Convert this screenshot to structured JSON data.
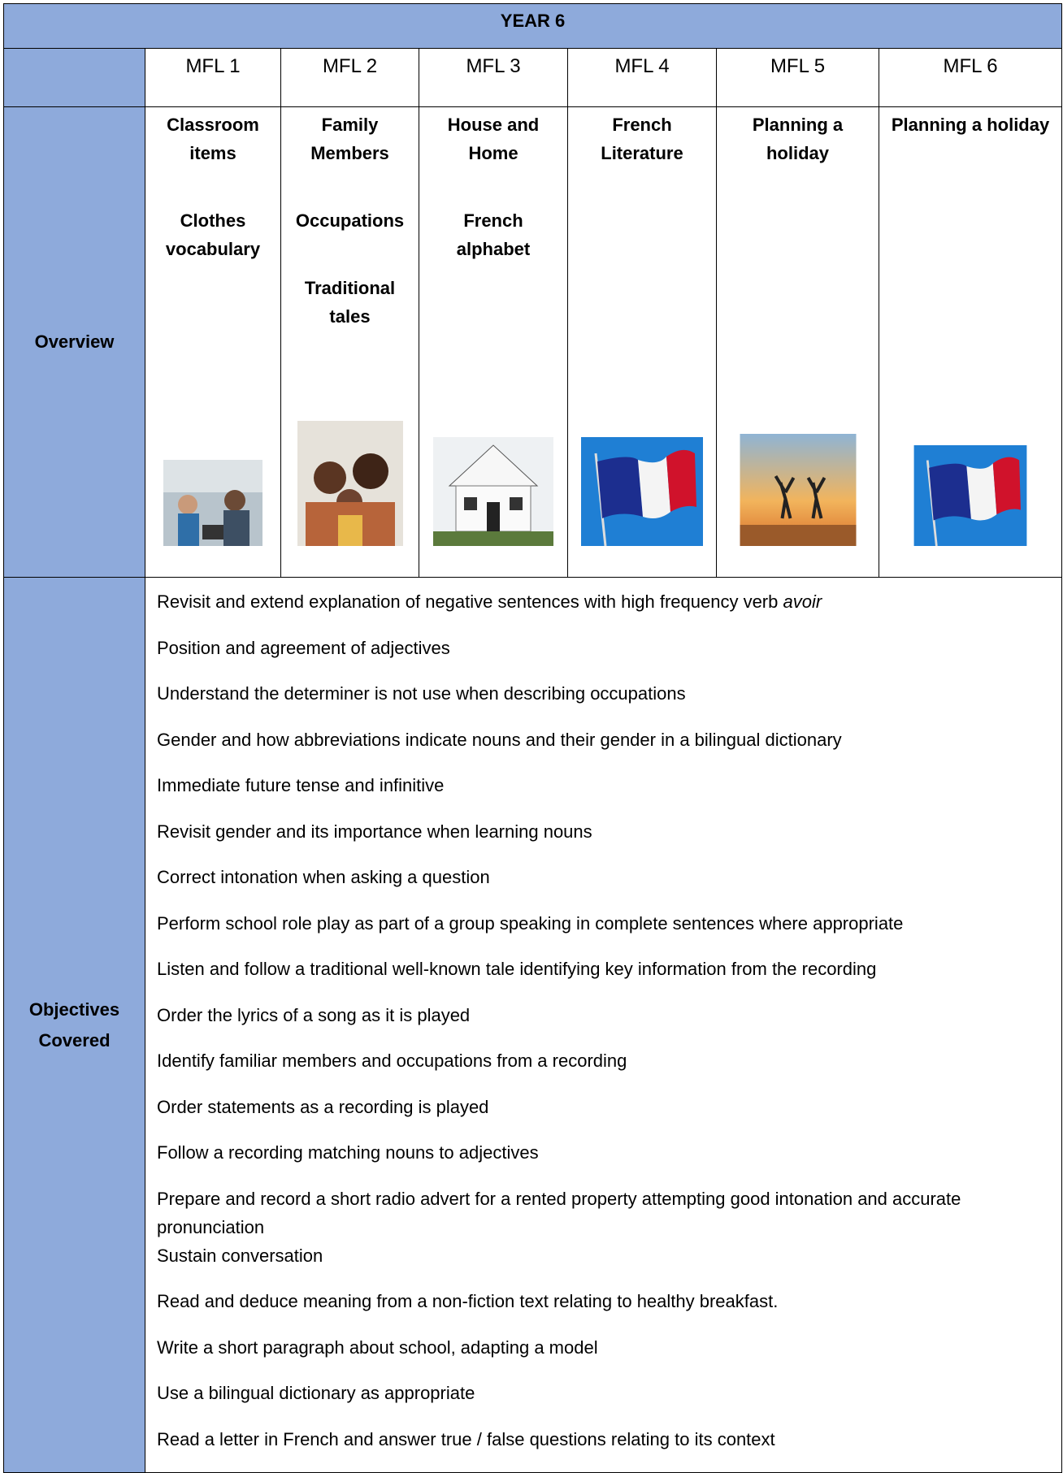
{
  "table": {
    "title": "YEAR 6",
    "headers": [
      "MFL  1",
      "MFL 2",
      "MFL 3",
      "MFL 4",
      "MFL 5",
      "MFL 6"
    ],
    "overview_label": "Overview",
    "overview": [
      [
        "Classroom items",
        "Clothes vocabulary"
      ],
      [
        "Family Members",
        "Occupations",
        "Traditional tales"
      ],
      [
        "House and Home",
        "French alphabet"
      ],
      [
        "French Literature"
      ],
      [
        "Planning a holiday"
      ],
      [
        "Planning a holiday"
      ]
    ],
    "objectives_label": "Objectives Covered",
    "objectives": [
      {
        "text": "Revisit and extend explanation of negative sentences with high frequency verb ",
        "italic": "avoir"
      },
      {
        "text": "Position and agreement of adjectives"
      },
      {
        "text": "Understand the determiner is not use when describing occupations"
      },
      {
        "text": "Gender and how abbreviations indicate nouns and their gender in a bilingual dictionary"
      },
      {
        "text": "Immediate future tense and infinitive"
      },
      {
        "text": "Revisit gender and its importance when learning nouns"
      },
      {
        "text": "Correct intonation when asking a question"
      },
      {
        "text": "Perform school role play as part of a group speaking in complete sentences where appropriate"
      },
      {
        "text": "Listen and follow a traditional well-known tale identifying key information from the recording"
      },
      {
        "text": "Order the lyrics of a song as it is played"
      },
      {
        "text": "Identify familiar members and occupations from a recording"
      },
      {
        "text": "Order statements as a recording is played"
      },
      {
        "text": "Follow a recording matching nouns to adjectives"
      },
      {
        "text": "Prepare and record a short radio advert for a rented property attempting good intonation and accurate pronunciation"
      },
      {
        "text": "Sustain conversation"
      },
      {
        "text": "Read and deduce meaning from a non-fiction text relating to healthy breakfast."
      },
      {
        "text": "Write a short paragraph about school, adapting a model"
      },
      {
        "text": "Use a bilingual dictionary as appropriate"
      },
      {
        "text": "Read a letter in French and answer true / false questions relating to its context"
      }
    ]
  }
}
